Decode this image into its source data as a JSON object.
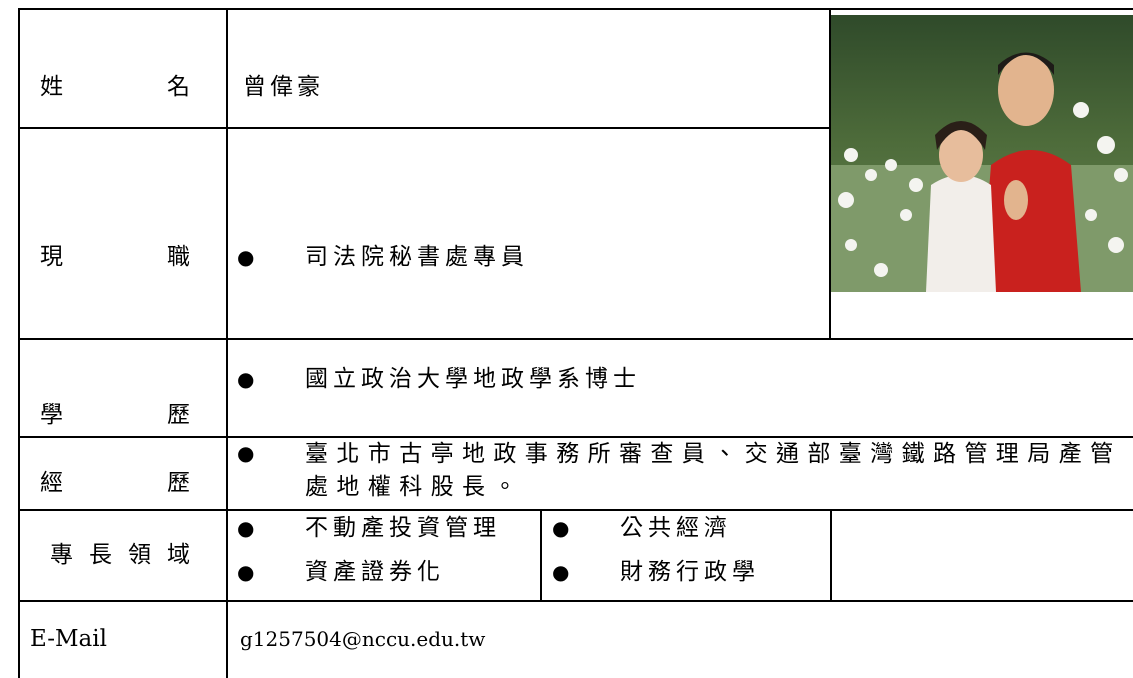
{
  "profile": {
    "name_label": "姓名",
    "name": "曾偉豪",
    "position_label": "現職",
    "position": "司法院秘書處專員",
    "education_label": "學歷",
    "education": "國立政治大學地政學系博士",
    "experience_label": "經歷",
    "experience": "臺北市古亭地政事務所審查員、交通部臺灣鐵路管理局產管處地權科股長。",
    "expertise_label": "專長領域",
    "expertise": [
      "不動產投資管理",
      "公共經濟",
      "資產證券化",
      "財務行政學"
    ],
    "email_label": "E-Mail",
    "email": "g1257504@nccu.edu.tw"
  }
}
